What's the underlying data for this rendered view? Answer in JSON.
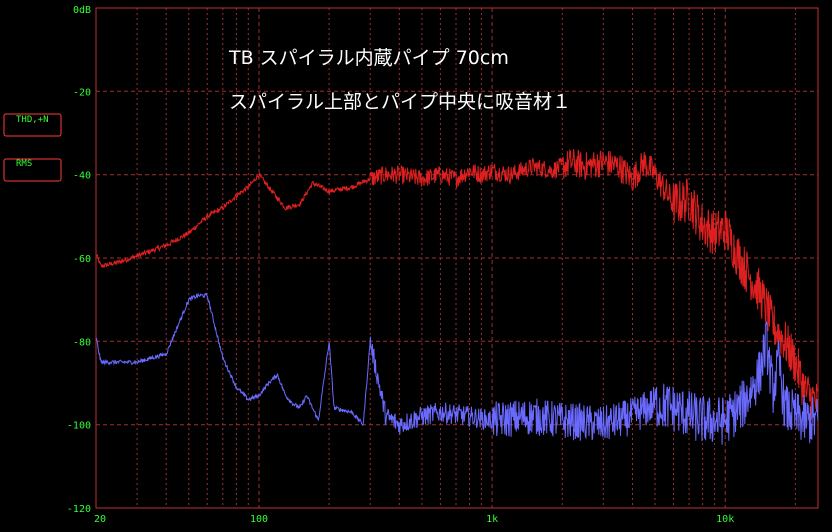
{
  "chart_data": {
    "type": "line",
    "title": "TB スパイラル内蔵パイプ 70cm",
    "subtitle": "スパイラル上部とパイプ中央に吸音材１",
    "xlabel": "",
    "ylabel": "",
    "x_scale": "log",
    "xlim": [
      20,
      25000
    ],
    "ylim": [
      -120,
      0
    ],
    "x_ticks": [
      "20",
      "100",
      "1k",
      "10k"
    ],
    "y_ticks": [
      "0dB",
      "-20",
      "-40",
      "-60",
      "-80",
      "-100",
      "-120"
    ],
    "grid": true,
    "legend": [
      "THD,+N",
      "RMS"
    ],
    "colors": {
      "thd": "#e02020",
      "rms": "#6a6aff",
      "grid": "#a03030",
      "text": "#33ff33"
    },
    "series": [
      {
        "name": "THD,+N",
        "x": [
          20,
          21,
          25,
          30,
          40,
          50,
          60,
          70,
          80,
          90,
          100,
          110,
          130,
          150,
          170,
          200,
          250,
          300,
          350,
          400,
          500,
          600,
          700,
          800,
          900,
          1000,
          1200,
          1500,
          1800,
          2000,
          2200,
          2500,
          3000,
          3500,
          4000,
          4500,
          5000,
          6000,
          7000,
          8000,
          9000,
          10000,
          11000,
          12000,
          14000,
          15000,
          16000,
          18000,
          20000,
          22000,
          25000
        ],
        "values": [
          -59,
          -62,
          -61,
          -59.5,
          -57,
          -54,
          -50,
          -48,
          -45,
          -43,
          -40,
          -43,
          -48,
          -47,
          -42,
          -44,
          -43,
          -41,
          -40,
          -40,
          -41,
          -40,
          -41,
          -39,
          -40,
          -39,
          -40,
          -38,
          -39,
          -38,
          -37,
          -38,
          -37,
          -38,
          -41,
          -37,
          -40,
          -47,
          -46,
          -52,
          -54,
          -53,
          -58,
          -62,
          -68,
          -72,
          -76,
          -80,
          -85,
          -92,
          -95
        ]
      },
      {
        "name": "RMS",
        "x": [
          20,
          21,
          25,
          30,
          40,
          50,
          55,
          60,
          70,
          80,
          90,
          100,
          110,
          120,
          130,
          140,
          150,
          160,
          180,
          200,
          210,
          250,
          280,
          300,
          350,
          400,
          500,
          600,
          800,
          1000,
          1500,
          2000,
          3000,
          4000,
          5000,
          6000,
          8000,
          10000,
          11000,
          12000,
          14000,
          15000,
          16000,
          17000,
          18000,
          20000,
          22000,
          25000
        ],
        "values": [
          -79,
          -85,
          -85,
          -85,
          -83,
          -70,
          -69,
          -69,
          -84,
          -91,
          -94,
          -93,
          -90,
          -88,
          -93,
          -95,
          -96,
          -93,
          -99,
          -80,
          -96,
          -97,
          -100,
          -80,
          -98,
          -100,
          -98,
          -97,
          -98,
          -99,
          -98,
          -99,
          -100,
          -98,
          -95,
          -96,
          -99,
          -99,
          -97,
          -95,
          -88,
          -80,
          -92,
          -85,
          -96,
          -98,
          -99,
          -99
        ]
      }
    ]
  }
}
